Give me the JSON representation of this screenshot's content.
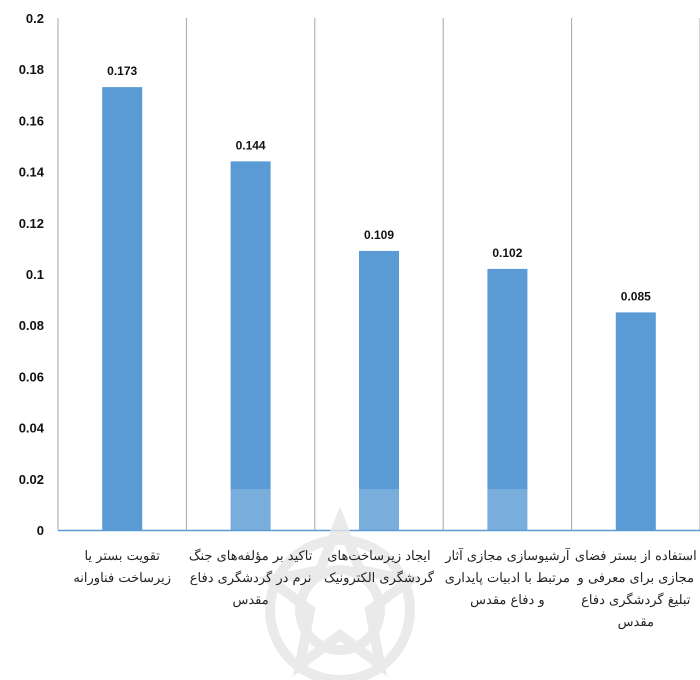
{
  "chart_data": {
    "type": "bar",
    "categories": [
      "تقویت بستر یا زیرساخت فناورانه",
      "تاکید بر مؤلفه‌های جنگ نرم در گردشگری دفاع مقدس",
      "ایجاد زیرساخت‌های گردشگری الکترونیک",
      "آرشیوسازی مجازی آثار مرتبط با ادبیات پایداری و دفاع مقدس",
      "استفاده از بستر فضای مجازی برای معرفی و تبلیغ گردشگری دفاع مقدس"
    ],
    "values": [
      0.173,
      0.144,
      0.109,
      0.102,
      0.085
    ],
    "data_labels": [
      "0.173",
      "0.144",
      "0.109",
      "0.102",
      "0.085"
    ],
    "ylim": [
      0,
      0.2
    ],
    "yticks": [
      "0",
      "0.02",
      "0.04",
      "0.06",
      "0.08",
      "0.1",
      "0.12",
      "0.14",
      "0.16",
      "0.18",
      "0.2"
    ],
    "title": "",
    "xlabel": "",
    "ylabel": "",
    "grid": "vertical separators",
    "colors": {
      "bar": "#5b9bd5",
      "axis": "#5b9bd5",
      "grid": "#a6a6a6"
    }
  }
}
